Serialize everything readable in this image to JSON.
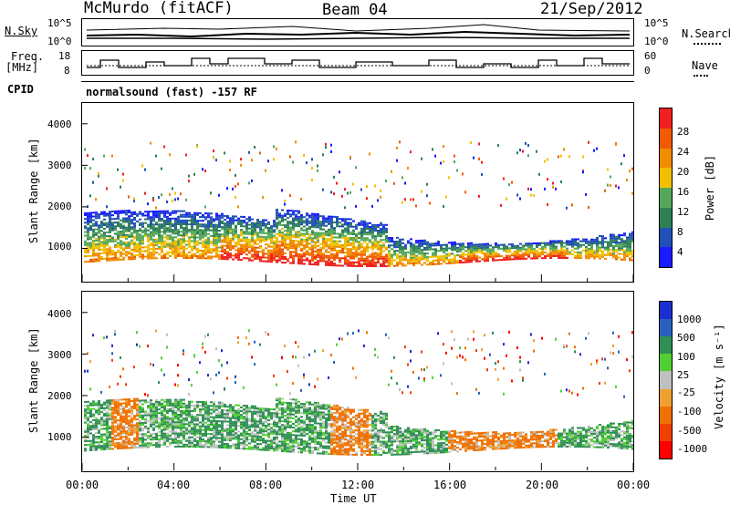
{
  "header": {
    "station": "McMurdo (fitACF)",
    "beam": "Beam 04",
    "date": "21/Sep/2012",
    "cpid_label": "CPID",
    "cpid_value": "normalsound (fast) -157 RF"
  },
  "noise_panel": {
    "left_label": "N.Sky",
    "right_label": "N.Search",
    "left_ticks": [
      "10^5",
      "10^0"
    ],
    "right_ticks": [
      "10^5",
      "10^0"
    ]
  },
  "freq_panel": {
    "left_label_1": "Freq.",
    "left_label_2": "[MHz]",
    "right_label": "Nave",
    "left_ticks": [
      "18",
      "8"
    ],
    "right_ticks": [
      "60",
      "0"
    ]
  },
  "colors": {
    "power": [
      "#1a1aff",
      "#2050b8",
      "#2f7f55",
      "#55a85a",
      "#f0c000",
      "#f08c00",
      "#f05a00",
      "#f02020"
    ],
    "velocity": [
      "#ff0000",
      "#f04000",
      "#f07000",
      "#f0a030",
      "#c0c0c0",
      "#50d030",
      "#2f8f55",
      "#2860c0",
      "#1a2fd0"
    ]
  },
  "chart_data": [
    {
      "type": "heatmap",
      "name": "power",
      "ylabel": "Slant Range [km]",
      "xlim": [
        0,
        24
      ],
      "ylim": [
        200,
        4500
      ],
      "yticks": [
        "1000",
        "2000",
        "3000",
        "4000"
      ],
      "colorbar_label": "Power [dB]",
      "colorbar_ticks": [
        "4",
        "8",
        "12",
        "16",
        "20",
        "24",
        "28"
      ],
      "clim": [
        0,
        32
      ]
    },
    {
      "type": "heatmap",
      "name": "velocity",
      "ylabel": "Slant Range [km]",
      "xlabel": "Time UT",
      "xlim": [
        0,
        24
      ],
      "ylim": [
        200,
        4500
      ],
      "yticks": [
        "1000",
        "2000",
        "3000",
        "4000"
      ],
      "xticks": [
        "00:00",
        "04:00",
        "08:00",
        "12:00",
        "16:00",
        "20:00",
        "00:00"
      ],
      "colorbar_label": "Velocity [m s⁻¹]",
      "colorbar_ticks": [
        "1000",
        "500",
        "100",
        "25",
        "-25",
        "-100",
        "-500",
        "-1000"
      ]
    }
  ]
}
